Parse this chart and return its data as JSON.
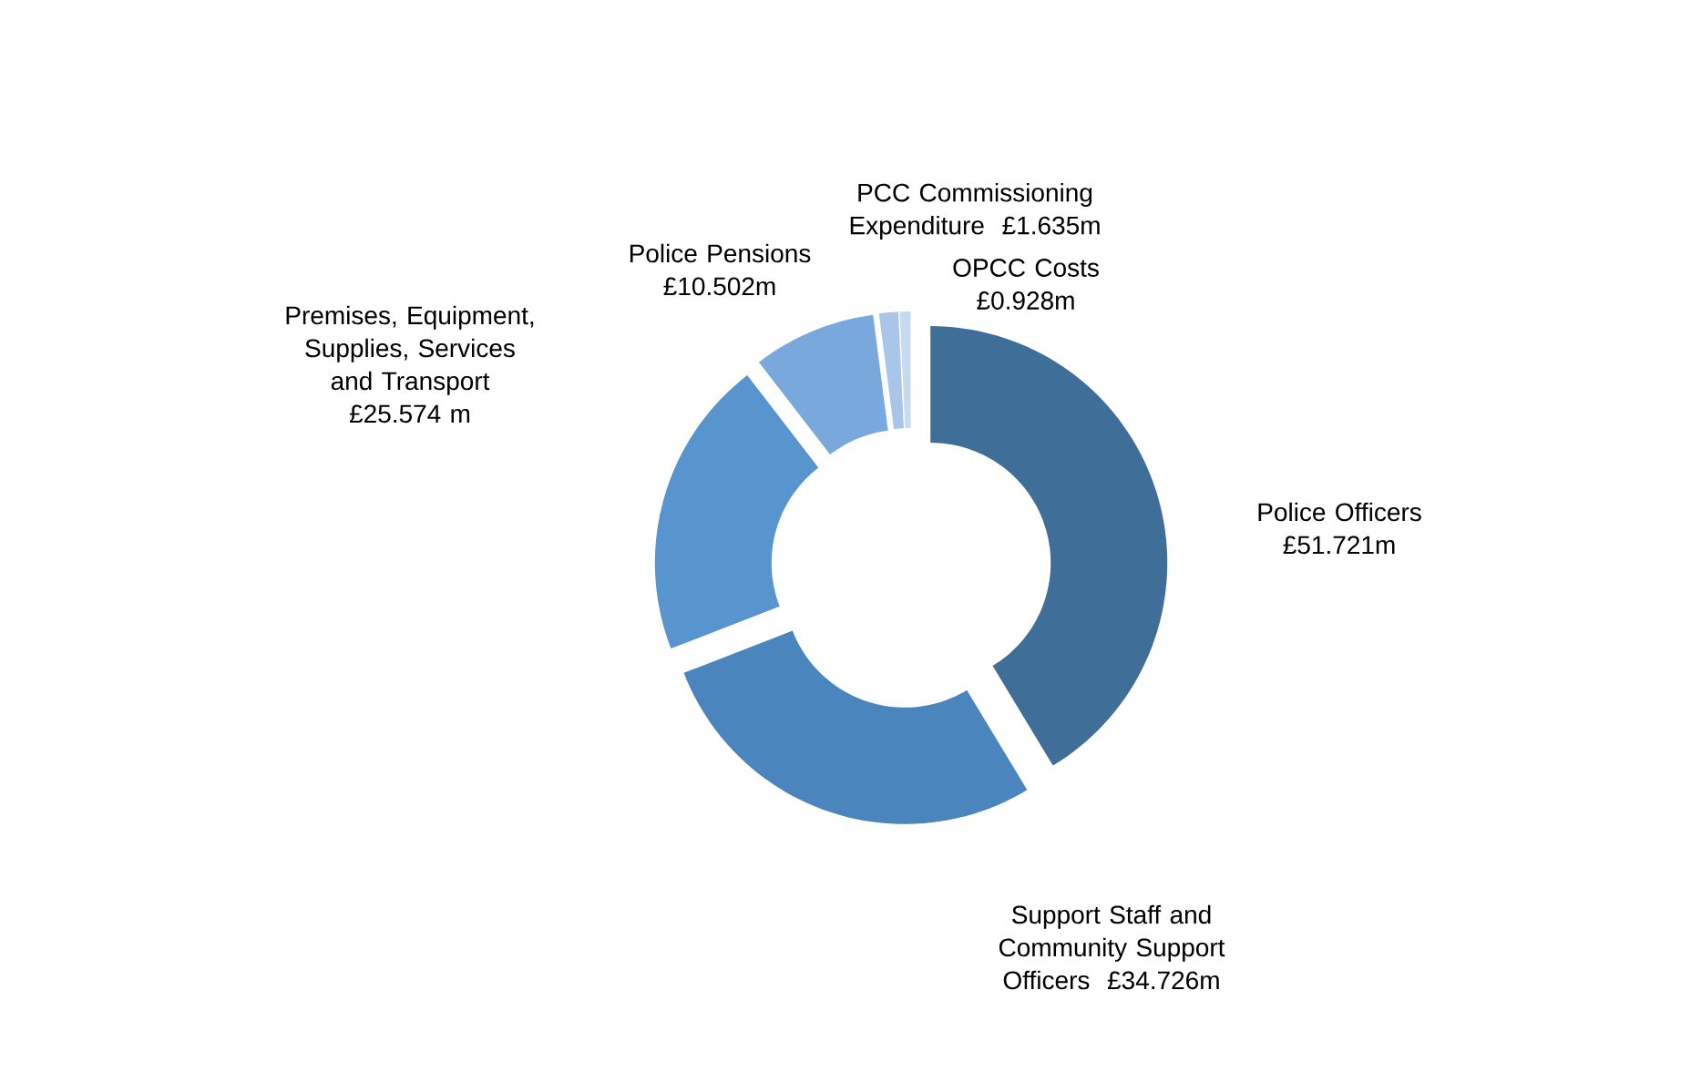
{
  "chart_data": {
    "type": "donut",
    "categories": [
      "Police Officers",
      "Support Staff and Community Support Officers",
      "Premises, Equipment, Supplies, Services and Transport",
      "Police Pensions",
      "PCC Commissioning Expenditure",
      "OPCC Costs"
    ],
    "values": [
      51.721,
      34.726,
      25.574,
      10.502,
      1.635,
      0.928
    ],
    "value_labels": [
      "£51.721m",
      "£34.726m",
      "£25.574 m",
      "£10.502m",
      "£1.635m",
      "£0.928m"
    ],
    "colors": [
      "#3f6f98",
      "#4a86bd",
      "#5895cf",
      "#79a9dc",
      "#a9c6e8",
      "#c7daf0"
    ]
  }
}
